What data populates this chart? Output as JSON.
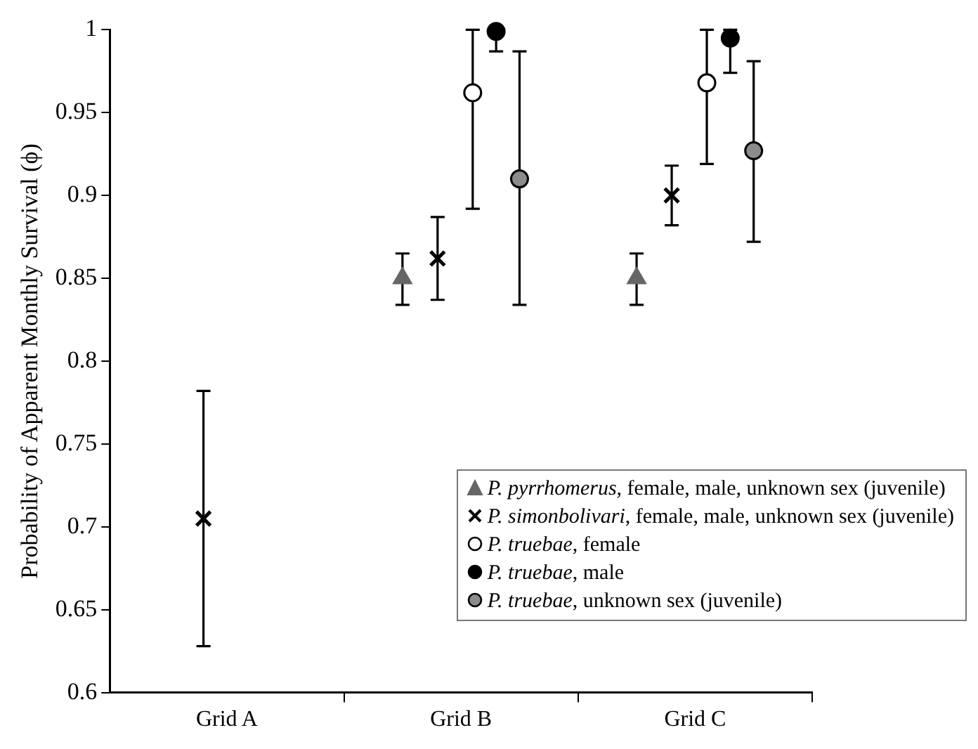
{
  "chart_data": {
    "type": "scatter",
    "ylabel": "Probability of Apparent Monthly Survival (ϕ)",
    "categories": [
      "Grid A",
      "Grid B",
      "Grid C"
    ],
    "ylim": [
      0.6,
      1
    ],
    "yticks": [
      0.6,
      0.65,
      0.7,
      0.75,
      0.8,
      0.85,
      0.9,
      0.95,
      1
    ],
    "legend": "bottom right",
    "grid": false,
    "series": [
      {
        "name": "P. pyrrhomerus, female, male, unknown sex (juvenile)",
        "color": "#666666",
        "marker": "triangle",
        "values": [
          null,
          0.85,
          0.85
        ],
        "errors": [
          null,
          [
            0.834,
            0.865
          ],
          [
            0.834,
            0.865
          ]
        ]
      },
      {
        "name": "P. simonbolivari,  female, male, unknown sex (juvenile)",
        "color": "#000000",
        "marker": "cross",
        "values": [
          0.705,
          0.862,
          0.9
        ],
        "errors": [
          [
            0.628,
            0.782
          ],
          [
            0.837,
            0.887
          ],
          [
            0.882,
            0.918
          ]
        ]
      },
      {
        "name": "P. truebae, female",
        "color": "#ffffff",
        "marker": "circle",
        "values": [
          null,
          0.962,
          0.968
        ],
        "errors": [
          null,
          [
            0.892,
            1
          ],
          [
            0.919,
            1
          ]
        ]
      },
      {
        "name": "P. truebae, male",
        "color": "#000000",
        "marker": "circle",
        "values": [
          null,
          0.999,
          0.995
        ],
        "errors": [
          null,
          [
            0.987,
            1
          ],
          [
            0.974,
            1
          ]
        ]
      },
      {
        "name": "P. truebae, unknown sex (juvenile)",
        "color": "#8c8c8c",
        "marker": "circle",
        "values": [
          null,
          0.91,
          0.927
        ],
        "errors": [
          null,
          [
            0.834,
            0.987
          ],
          [
            0.872,
            0.981
          ]
        ]
      }
    ]
  }
}
